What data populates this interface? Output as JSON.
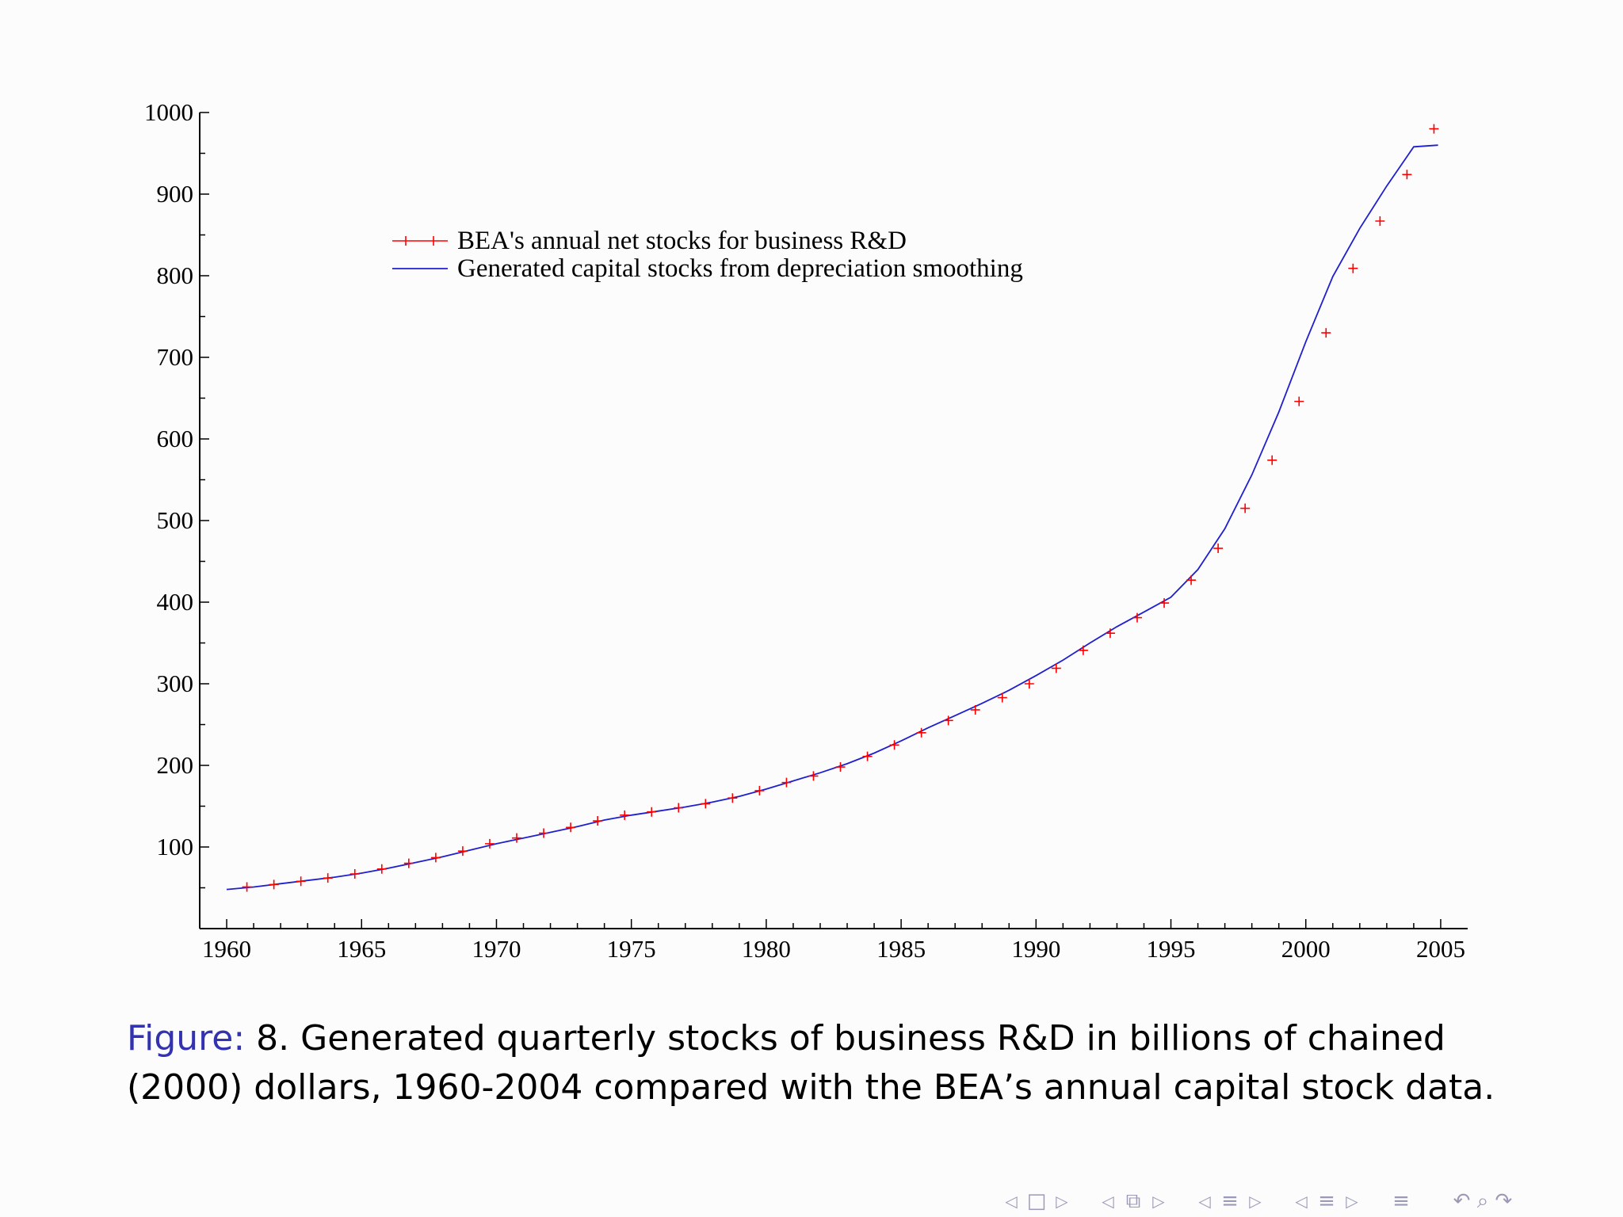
{
  "chart_data": {
    "type": "line",
    "title": "",
    "xlabel": "",
    "ylabel": "",
    "xlim": [
      1959,
      2006
    ],
    "ylim": [
      0,
      1000
    ],
    "x_ticks": [
      1960,
      1965,
      1970,
      1975,
      1980,
      1985,
      1990,
      1995,
      2000,
      2005
    ],
    "y_ticks": [
      100,
      200,
      300,
      400,
      500,
      600,
      700,
      800,
      900,
      1000
    ],
    "legend_position": "top-left",
    "series": [
      {
        "name": "BEA's annual net stocks for business R&D",
        "style": "markers-plus",
        "color": "#ff0000",
        "x": [
          1960.75,
          1961.75,
          1962.75,
          1963.75,
          1964.75,
          1965.75,
          1966.75,
          1967.75,
          1968.75,
          1969.75,
          1970.75,
          1971.75,
          1972.75,
          1973.75,
          1974.75,
          1975.75,
          1976.75,
          1977.75,
          1978.75,
          1979.75,
          1980.75,
          1981.75,
          1982.75,
          1983.75,
          1984.75,
          1985.75,
          1986.75,
          1987.75,
          1988.75,
          1989.75,
          1990.75,
          1991.75,
          1992.75,
          1993.75,
          1994.75,
          1995.75,
          1996.75,
          1997.75,
          1998.75,
          1999.75,
          2000.75,
          2001.75,
          2002.75,
          2003.75,
          2004.75
        ],
        "values": [
          51,
          54,
          58,
          62,
          67,
          73,
          80,
          87,
          95,
          104,
          111,
          117,
          124,
          132,
          139,
          143,
          148,
          153,
          160,
          169,
          179,
          187,
          198,
          211,
          225,
          240,
          255,
          268,
          283,
          300,
          319,
          341,
          362,
          381,
          399,
          427,
          466,
          515,
          574,
          646,
          730,
          809,
          867,
          924,
          980
        ]
      },
      {
        "name": "Generated capital stocks from depreciation smoothing",
        "style": "line",
        "color": "#1f1fd0",
        "x": [
          1960,
          1961,
          1962,
          1963,
          1964,
          1965,
          1966,
          1967,
          1968,
          1969,
          1970,
          1971,
          1972,
          1973,
          1974,
          1975,
          1976,
          1977,
          1978,
          1979,
          1980,
          1981,
          1982,
          1983,
          1984,
          1985,
          1986,
          1987,
          1988,
          1989,
          1990,
          1991,
          1992,
          1993,
          1994,
          1995,
          1996,
          1997,
          1998,
          1999,
          2000,
          2001,
          2002,
          2003,
          2004,
          2004.9
        ],
        "values": [
          48,
          51,
          55,
          59,
          63,
          68,
          74,
          81,
          88,
          96,
          104,
          111,
          118,
          125,
          133,
          139,
          144,
          149,
          155,
          162,
          171,
          181,
          191,
          202,
          215,
          230,
          246,
          261,
          276,
          292,
          310,
          329,
          350,
          370,
          388,
          406,
          440,
          490,
          556,
          633,
          719,
          799,
          858,
          910,
          958,
          960
        ]
      }
    ]
  },
  "caption": {
    "label": "Figure:",
    "text": " 8. Generated quarterly stocks of business R&D in billions of chained (2000) dollars, 1960-2004 compared with the BEA’s annual capital stock data."
  },
  "navigation": {
    "prev_arrow": "◁",
    "next_arrow": "▷",
    "frame_icon": "□",
    "subsection_icon": "⧉",
    "section_icon": "≡",
    "menu_icon": "≡",
    "search_icon": "↶ ⌕ ↷"
  }
}
